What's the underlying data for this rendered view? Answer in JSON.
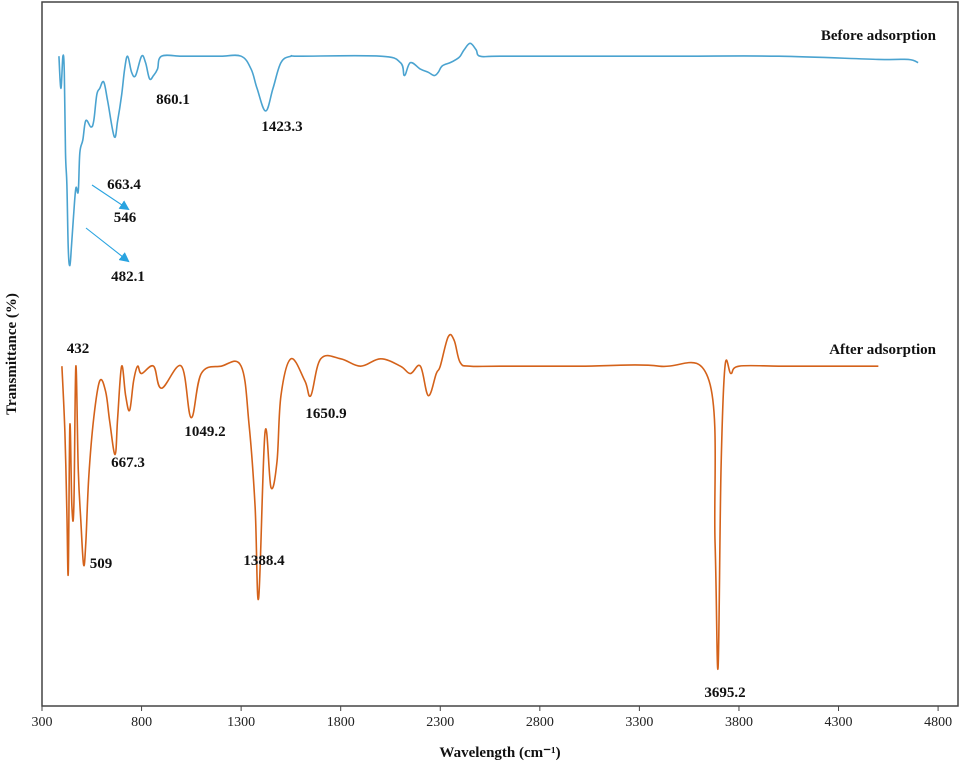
{
  "chart_data": {
    "type": "line",
    "title": "",
    "xlabel": "Wavelength (cm⁻¹)",
    "ylabel": "Transmittance (%)",
    "xlim": [
      300,
      4900
    ],
    "ylim": [
      0,
      100
    ],
    "x_ticks": [
      300,
      800,
      1300,
      1800,
      2300,
      2800,
      3300,
      3800,
      4300,
      4800
    ],
    "grid": false,
    "colors": {
      "before": "#4aa3d0",
      "after": "#d4621a",
      "arrow": "#29a3e0",
      "axis": "#444444"
    },
    "series": [
      {
        "name": "Before adsorption",
        "x": [
          385,
          395,
          405,
          412,
          418,
          425,
          432,
          440,
          448,
          458,
          470,
          482,
          490,
          505,
          520,
          546,
          560,
          575,
          590,
          610,
          630,
          663,
          680,
          700,
          715,
          730,
          750,
          770,
          800,
          820,
          840,
          860,
          880,
          900,
          1000,
          1100,
          1200,
          1300,
          1350,
          1380,
          1423,
          1460,
          1500,
          1550,
          1600,
          2000,
          2100,
          2120,
          2150,
          2200,
          2240,
          2270,
          2290,
          2310,
          2350,
          2380,
          2400,
          2420,
          2450,
          2480,
          2500,
          2600,
          3000,
          3500,
          4000,
          4500,
          4650,
          4700
        ],
        "y": [
          90,
          80,
          90,
          85,
          60,
          50,
          30,
          25,
          31,
          40,
          49,
          48,
          60,
          64,
          70,
          68,
          70,
          78,
          80,
          82,
          76,
          65,
          70,
          78,
          86,
          90,
          85,
          84,
          90,
          88,
          83,
          84,
          86,
          90,
          90,
          90,
          90,
          90,
          86,
          80,
          73,
          80,
          88,
          90,
          90,
          90,
          88,
          84,
          88,
          86,
          85,
          84,
          85,
          87,
          88,
          89,
          90,
          92,
          94,
          92,
          90,
          90,
          90,
          90,
          90,
          89,
          89,
          88
        ]
      },
      {
        "name": "After adsorption",
        "x": [
          400,
          415,
          425,
          432,
          440,
          450,
          460,
          470,
          482,
          495,
          509,
          520,
          535,
          560,
          590,
          620,
          640,
          667,
          680,
          700,
          720,
          740,
          760,
          780,
          800,
          860,
          900,
          1000,
          1049,
          1100,
          1200,
          1300,
          1340,
          1370,
          1388,
          1420,
          1450,
          1480,
          1500,
          1550,
          1620,
          1650,
          1700,
          1800,
          1900,
          2000,
          2100,
          2150,
          2200,
          2240,
          2280,
          2300,
          2340,
          2370,
          2400,
          2450,
          2600,
          3000,
          3400,
          3650,
          3680,
          3695,
          3710,
          3730,
          3760,
          3800,
          4000,
          4200,
          4400,
          4500
        ],
        "y": [
          88,
          70,
          48,
          32,
          72,
          50,
          50,
          88,
          60,
          46,
          34,
          40,
          58,
          74,
          84,
          81,
          73,
          64,
          74,
          88,
          80,
          76,
          84,
          88,
          86,
          88,
          82,
          88,
          74,
          86,
          88,
          88,
          72,
          50,
          25,
          70,
          55,
          62,
          80,
          90,
          84,
          80,
          90,
          90,
          88,
          90,
          88,
          86,
          88,
          80,
          86,
          88,
          96,
          95,
          89,
          88,
          88,
          88,
          88,
          84,
          40,
          6,
          60,
          88,
          86,
          88,
          88,
          88,
          88,
          88
        ]
      }
    ],
    "annotations": [
      {
        "series": "Before adsorption",
        "text": "860.1",
        "x": 860
      },
      {
        "series": "Before adsorption",
        "text": "1423.3",
        "x": 1423
      },
      {
        "series": "Before adsorption",
        "text": "663.4",
        "x": 663
      },
      {
        "series": "Before adsorption",
        "text": "546",
        "x": 546
      },
      {
        "series": "Before adsorption",
        "text": "482.1",
        "x": 482
      },
      {
        "series": "Before adsorption",
        "text": "432",
        "x": 432
      },
      {
        "series": "After adsorption",
        "text": "667.3",
        "x": 667
      },
      {
        "series": "After adsorption",
        "text": "1049.2",
        "x": 1049
      },
      {
        "series": "After adsorption",
        "text": "1650.9",
        "x": 1650
      },
      {
        "series": "After adsorption",
        "text": "509",
        "x": 509
      },
      {
        "series": "After adsorption",
        "text": "1388.4",
        "x": 1388
      },
      {
        "series": "After adsorption",
        "text": "3695.2",
        "x": 3695
      }
    ]
  }
}
